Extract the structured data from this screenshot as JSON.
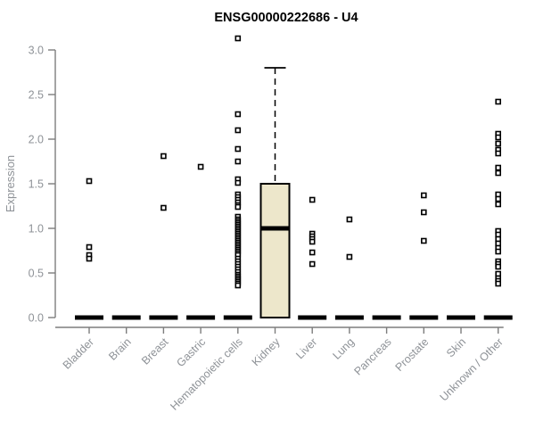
{
  "chart_data": {
    "type": "boxplot",
    "title": "ENSG00000222686 - U4",
    "ylabel": "Expression",
    "xlabel": "",
    "ylim": [
      0,
      3.16
    ],
    "yticks": [
      0,
      0.5,
      1,
      1.5,
      2,
      2.5,
      3
    ],
    "grid": false,
    "legend": "none",
    "categories": [
      "Bladder",
      "Brain",
      "Breast",
      "Gastric",
      "Hematopoietic cells",
      "Kidney",
      "Liver",
      "Lung",
      "Pancreas",
      "Prostate",
      "Skin",
      "Unknown / Other"
    ],
    "series": [
      {
        "category": "Bladder",
        "q1": 0,
        "median": 0,
        "q3": 0,
        "whisker_low": 0,
        "whisker_high": 0,
        "outliers": [
          1.53,
          0.79,
          0.7,
          0.66
        ]
      },
      {
        "category": "Brain",
        "q1": 0,
        "median": 0,
        "q3": 0,
        "whisker_low": 0,
        "whisker_high": 0,
        "outliers": []
      },
      {
        "category": "Breast",
        "q1": 0,
        "median": 0,
        "q3": 0,
        "whisker_low": 0,
        "whisker_high": 0,
        "outliers": [
          1.81,
          1.23
        ]
      },
      {
        "category": "Gastric",
        "q1": 0,
        "median": 0,
        "q3": 0,
        "whisker_low": 0,
        "whisker_high": 0,
        "outliers": [
          1.69
        ]
      },
      {
        "category": "Hematopoietic cells",
        "q1": 0,
        "median": 0,
        "q3": 0,
        "whisker_low": 0,
        "whisker_high": 0,
        "outliers": [
          3.13,
          2.28,
          2.1,
          1.89,
          1.75,
          1.55,
          1.51,
          1.38,
          1.35,
          1.32,
          1.29,
          1.26,
          1.24,
          1.13,
          1.1,
          1.08,
          1.06,
          1.04,
          1.02,
          1.0,
          0.98,
          0.96,
          0.94,
          0.92,
          0.9,
          0.88,
          0.86,
          0.84,
          0.82,
          0.8,
          0.78,
          0.76,
          0.74,
          0.72,
          0.7,
          0.66,
          0.63,
          0.6,
          0.57,
          0.54,
          0.51,
          0.48,
          0.46,
          0.44,
          0.42,
          0.4,
          0.38,
          0.36
        ]
      },
      {
        "category": "Kidney",
        "q1": 0,
        "median": 1.0,
        "q3": 1.5,
        "whisker_low": 0,
        "whisker_high": 2.8,
        "outliers": []
      },
      {
        "category": "Liver",
        "q1": 0,
        "median": 0,
        "q3": 0,
        "whisker_low": 0,
        "whisker_high": 0,
        "outliers": [
          1.32,
          0.94,
          0.91,
          0.88,
          0.85,
          0.73,
          0.6
        ]
      },
      {
        "category": "Lung",
        "q1": 0,
        "median": 0,
        "q3": 0,
        "whisker_low": 0,
        "whisker_high": 0,
        "outliers": [
          1.1,
          0.68
        ]
      },
      {
        "category": "Pancreas",
        "q1": 0,
        "median": 0,
        "q3": 0,
        "whisker_low": 0,
        "whisker_high": 0,
        "outliers": []
      },
      {
        "category": "Prostate",
        "q1": 0,
        "median": 0,
        "q3": 0,
        "whisker_low": 0,
        "whisker_high": 0,
        "outliers": [
          1.37,
          1.18,
          0.86
        ]
      },
      {
        "category": "Skin",
        "q1": 0,
        "median": 0,
        "q3": 0,
        "whisker_low": 0,
        "whisker_high": 0,
        "outliers": []
      },
      {
        "category": "Unknown / Other",
        "q1": 0,
        "median": 0,
        "q3": 0,
        "whisker_low": 0,
        "whisker_high": 0,
        "outliers": [
          2.42,
          2.06,
          2.02,
          1.95,
          1.88,
          1.84,
          1.68,
          1.62,
          1.38,
          1.33,
          1.27,
          0.97,
          0.93,
          0.88,
          0.83,
          0.78,
          0.74,
          0.63,
          0.6,
          0.57,
          0.49,
          0.44,
          0.41,
          0.38
        ]
      }
    ],
    "colors": {
      "box_fill": "#ede7cb",
      "box_border": "#000000",
      "median": "#000000",
      "outlier": "#000000",
      "axis": "#7d7d7d",
      "tick_label": "#8e9297",
      "title": "#000000",
      "background": "#ffffff"
    }
  }
}
